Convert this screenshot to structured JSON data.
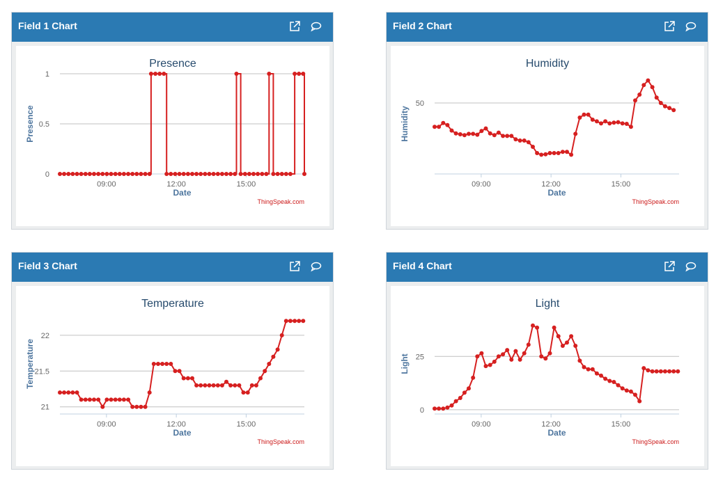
{
  "panels": [
    {
      "header": "Field 1 Chart",
      "credit": "ThingSpeak.com",
      "open_icon": "external-link-icon",
      "comment_icon": "comment-icon"
    },
    {
      "header": "Field 2 Chart",
      "credit": "ThingSpeak.com",
      "open_icon": "external-link-icon",
      "comment_icon": "comment-icon"
    },
    {
      "header": "Field 3 Chart",
      "credit": "ThingSpeak.com",
      "open_icon": "external-link-icon",
      "comment_icon": "comment-icon"
    },
    {
      "header": "Field 4 Chart",
      "credit": "ThingSpeak.com",
      "open_icon": "external-link-icon",
      "comment_icon": "comment-icon"
    }
  ],
  "colors": {
    "header": "#2b7ab3",
    "series": "#d62020",
    "title": "#274b6d",
    "axis_title": "#4d759e"
  },
  "chart_data": [
    {
      "type": "line",
      "title": "Presence",
      "xlabel": "Date",
      "ylabel": "Presence",
      "step": true,
      "xlim": [
        "07:00",
        "17:30"
      ],
      "ylim": [
        0,
        1
      ],
      "yticks": [
        0,
        0.5,
        1
      ],
      "ytick_labels": [
        "0",
        "0.5",
        "1"
      ],
      "xticks": [
        "09:00",
        "12:00",
        "15:00"
      ],
      "grid": true,
      "series": [
        {
          "x": [
            "07:00",
            "07:11",
            "07:22",
            "07:33",
            "07:44",
            "07:55",
            "08:06",
            "08:17",
            "08:28",
            "08:39",
            "08:50",
            "09:01",
            "09:12",
            "09:23",
            "09:34",
            "09:45",
            "09:56",
            "10:07",
            "10:18",
            "10:29",
            "10:40",
            "10:51",
            "10:55",
            "11:06",
            "11:17",
            "11:28",
            "11:35",
            "11:46",
            "11:57",
            "12:08",
            "12:19",
            "12:30",
            "12:41",
            "12:52",
            "13:03",
            "13:14",
            "13:25",
            "13:36",
            "13:47",
            "13:58",
            "14:09",
            "14:20",
            "14:31",
            "14:35",
            "14:46",
            "14:57",
            "15:08",
            "15:19",
            "15:30",
            "15:41",
            "15:52",
            "15:59",
            "16:10",
            "16:21",
            "16:32",
            "16:43",
            "16:54",
            "17:05",
            "17:16",
            "17:27",
            "17:30"
          ],
          "y": [
            0,
            0,
            0,
            0,
            0,
            0,
            0,
            0,
            0,
            0,
            0,
            0,
            0,
            0,
            0,
            0,
            0,
            0,
            0,
            0,
            0,
            0,
            1,
            1,
            1,
            1,
            0,
            0,
            0,
            0,
            0,
            0,
            0,
            0,
            0,
            0,
            0,
            0,
            0,
            0,
            0,
            0,
            0,
            1,
            0,
            0,
            0,
            0,
            0,
            0,
            0,
            1,
            0,
            0,
            0,
            0,
            0,
            1,
            1,
            1,
            0
          ]
        }
      ]
    },
    {
      "type": "line",
      "title": "Humidity",
      "xlabel": "Date",
      "ylabel": "Humidity",
      "xlim": [
        "07:00",
        "17:30"
      ],
      "ylim": [
        33,
        57
      ],
      "yticks": [
        50
      ],
      "ytick_labels": [
        "50"
      ],
      "xticks": [
        "09:00",
        "12:00",
        "15:00"
      ],
      "grid": true,
      "series": [
        {
          "x": [
            "07:00",
            "07:11",
            "07:22",
            "07:33",
            "07:44",
            "07:55",
            "08:06",
            "08:17",
            "08:28",
            "08:39",
            "08:50",
            "09:01",
            "09:12",
            "09:23",
            "09:34",
            "09:45",
            "09:56",
            "10:07",
            "10:18",
            "10:29",
            "10:40",
            "10:51",
            "11:02",
            "11:13",
            "11:24",
            "11:35",
            "11:46",
            "11:57",
            "12:08",
            "12:19",
            "12:30",
            "12:41",
            "12:52",
            "13:03",
            "13:14",
            "13:25",
            "13:36",
            "13:47",
            "13:58",
            "14:09",
            "14:20",
            "14:31",
            "14:42",
            "14:53",
            "15:04",
            "15:15",
            "15:26",
            "15:37",
            "15:48",
            "15:59",
            "16:10",
            "16:21",
            "16:32",
            "16:43",
            "16:54",
            "17:05",
            "17:16"
          ],
          "y": [
            44.3,
            44.3,
            45.2,
            44.7,
            43.4,
            42.7,
            42.5,
            42.3,
            42.6,
            42.6,
            42.4,
            43.3,
            43.9,
            42.7,
            42.3,
            42.9,
            42.1,
            42.1,
            42.1,
            41.3,
            41.0,
            41.0,
            40.6,
            39.5,
            38.0,
            37.6,
            37.7,
            38.0,
            38.0,
            38.0,
            38.3,
            38.3,
            37.6,
            42.6,
            46.5,
            47.2,
            47.2,
            46.0,
            45.6,
            45.1,
            45.6,
            45.1,
            45.3,
            45.4,
            45.1,
            45.0,
            44.3,
            50.6,
            52.0,
            54.3,
            55.4,
            53.8,
            51.3,
            50.0,
            49.2,
            48.8,
            48.3
          ]
        }
      ]
    },
    {
      "type": "line",
      "title": "Temperature",
      "xlabel": "Date",
      "ylabel": "Temperature",
      "xlim": [
        "07:00",
        "17:30"
      ],
      "ylim": [
        20.9,
        22.3
      ],
      "yticks": [
        21,
        21.5,
        22
      ],
      "ytick_labels": [
        "21",
        "21.5",
        "22"
      ],
      "xticks": [
        "09:00",
        "12:00",
        "15:00"
      ],
      "grid": true,
      "series": [
        {
          "x": [
            "07:00",
            "07:11",
            "07:22",
            "07:33",
            "07:44",
            "07:55",
            "08:06",
            "08:17",
            "08:28",
            "08:39",
            "08:50",
            "09:01",
            "09:12",
            "09:23",
            "09:34",
            "09:45",
            "09:56",
            "10:07",
            "10:18",
            "10:29",
            "10:40",
            "10:51",
            "11:02",
            "11:13",
            "11:24",
            "11:35",
            "11:46",
            "11:57",
            "12:08",
            "12:19",
            "12:30",
            "12:41",
            "12:52",
            "13:03",
            "13:14",
            "13:25",
            "13:36",
            "13:47",
            "13:58",
            "14:09",
            "14:20",
            "14:31",
            "14:42",
            "14:53",
            "15:04",
            "15:15",
            "15:26",
            "15:37",
            "15:48",
            "15:59",
            "16:10",
            "16:21",
            "16:32",
            "16:43",
            "16:54",
            "17:05",
            "17:16",
            "17:27"
          ],
          "y": [
            21.2,
            21.2,
            21.2,
            21.2,
            21.2,
            21.1,
            21.1,
            21.1,
            21.1,
            21.1,
            21.0,
            21.1,
            21.1,
            21.1,
            21.1,
            21.1,
            21.1,
            21.0,
            21.0,
            21.0,
            21.0,
            21.2,
            21.6,
            21.6,
            21.6,
            21.6,
            21.6,
            21.5,
            21.5,
            21.4,
            21.4,
            21.4,
            21.3,
            21.3,
            21.3,
            21.3,
            21.3,
            21.3,
            21.3,
            21.35,
            21.3,
            21.3,
            21.3,
            21.2,
            21.2,
            21.3,
            21.3,
            21.4,
            21.5,
            21.6,
            21.7,
            21.8,
            22.0,
            22.2,
            22.2,
            22.2,
            22.2,
            22.2
          ]
        }
      ]
    },
    {
      "type": "line",
      "title": "Light",
      "xlabel": "Date",
      "ylabel": "Light",
      "xlim": [
        "07:00",
        "17:30"
      ],
      "ylim": [
        -2,
        45
      ],
      "yticks": [
        0,
        25
      ],
      "ytick_labels": [
        "0",
        "25"
      ],
      "xticks": [
        "09:00",
        "12:00",
        "15:00"
      ],
      "grid": true,
      "series": [
        {
          "x": [
            "07:00",
            "07:11",
            "07:22",
            "07:33",
            "07:44",
            "07:55",
            "08:06",
            "08:17",
            "08:28",
            "08:39",
            "08:50",
            "09:01",
            "09:12",
            "09:23",
            "09:34",
            "09:45",
            "09:56",
            "10:07",
            "10:18",
            "10:29",
            "10:40",
            "10:51",
            "11:02",
            "11:13",
            "11:24",
            "11:35",
            "11:46",
            "11:57",
            "12:08",
            "12:19",
            "12:30",
            "12:41",
            "12:52",
            "13:03",
            "13:14",
            "13:25",
            "13:36",
            "13:47",
            "13:58",
            "14:09",
            "14:20",
            "14:31",
            "14:42",
            "14:53",
            "15:04",
            "15:15",
            "15:26",
            "15:37",
            "15:48",
            "15:59",
            "16:10",
            "16:21",
            "16:32",
            "16:43",
            "16:54",
            "17:05",
            "17:16",
            "17:27"
          ],
          "y": [
            0.5,
            0.5,
            0.5,
            1,
            2,
            4,
            5.5,
            8,
            10,
            15,
            25,
            26.5,
            20.5,
            21,
            22.5,
            25,
            26,
            28,
            23.5,
            27.5,
            23.5,
            26.5,
            30.5,
            39.5,
            38.5,
            25,
            24,
            26.5,
            38.5,
            34.5,
            30,
            31.5,
            34.5,
            30,
            23,
            20,
            19,
            19,
            17,
            16,
            14.5,
            13.5,
            13,
            11.5,
            10,
            9,
            8.5,
            7,
            4,
            19.5,
            18.5,
            18,
            18,
            18,
            18,
            18,
            18,
            18
          ]
        }
      ]
    }
  ]
}
